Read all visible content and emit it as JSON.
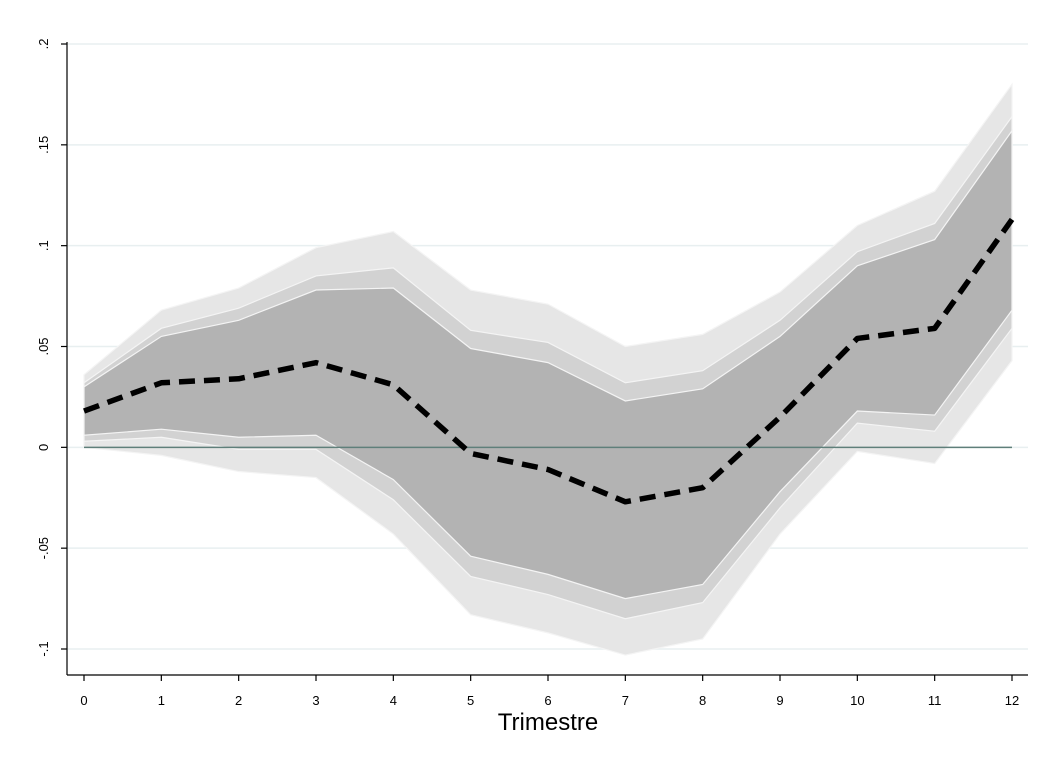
{
  "chart_data": {
    "type": "area",
    "title": "",
    "xlabel": "Trimestre",
    "ylabel": "",
    "x": [
      0,
      1,
      2,
      3,
      4,
      5,
      6,
      7,
      8,
      9,
      10,
      11,
      12
    ],
    "xlim": [
      0,
      12
    ],
    "ylim": [
      -0.1,
      0.2
    ],
    "x_ticks": [
      0,
      1,
      2,
      3,
      4,
      5,
      6,
      7,
      8,
      9,
      10,
      11,
      12
    ],
    "x_tick_labels": [
      "0",
      "1",
      "2",
      "3",
      "4",
      "5",
      "6",
      "7",
      "8",
      "9",
      "10",
      "11",
      "12"
    ],
    "y_ticks": [
      -0.1,
      -0.05,
      0,
      0.05,
      0.1,
      0.15,
      0.2
    ],
    "y_tick_labels": [
      "-.1",
      "-.05",
      "0",
      ".05",
      ".1",
      ".15",
      ".2"
    ],
    "grid": true,
    "legend": "none",
    "reference_line": {
      "y": 0,
      "color": "#5f7f7a"
    },
    "bands": [
      {
        "color": "#e6e6e6",
        "upper": [
          0.036,
          0.068,
          0.079,
          0.099,
          0.107,
          0.078,
          0.071,
          0.05,
          0.056,
          0.077,
          0.11,
          0.127,
          0.18
        ],
        "lower": [
          0.0,
          -0.004,
          -0.012,
          -0.015,
          -0.043,
          -0.083,
          -0.092,
          -0.103,
          -0.095,
          -0.043,
          -0.002,
          -0.008,
          0.043
        ]
      },
      {
        "color": "#d2d2d2",
        "upper": [
          0.032,
          0.059,
          0.069,
          0.085,
          0.089,
          0.058,
          0.052,
          0.032,
          0.038,
          0.063,
          0.097,
          0.111,
          0.164
        ],
        "lower": [
          0.003,
          0.005,
          -0.001,
          -0.001,
          -0.026,
          -0.064,
          -0.073,
          -0.085,
          -0.077,
          -0.03,
          0.012,
          0.008,
          0.059
        ]
      },
      {
        "color": "#b3b3b3",
        "upper": [
          0.03,
          0.055,
          0.063,
          0.078,
          0.079,
          0.049,
          0.042,
          0.023,
          0.029,
          0.055,
          0.09,
          0.103,
          0.157
        ],
        "lower": [
          0.006,
          0.009,
          0.005,
          0.006,
          -0.016,
          -0.054,
          -0.063,
          -0.075,
          -0.068,
          -0.022,
          0.018,
          0.016,
          0.068
        ]
      }
    ],
    "series": [
      {
        "values": [
          0.018,
          0.032,
          0.034,
          0.042,
          0.031,
          -0.003,
          -0.011,
          -0.027,
          -0.02,
          0.015,
          0.054,
          0.059,
          0.113
        ],
        "color": "#000000",
        "style": "dashed"
      }
    ]
  }
}
